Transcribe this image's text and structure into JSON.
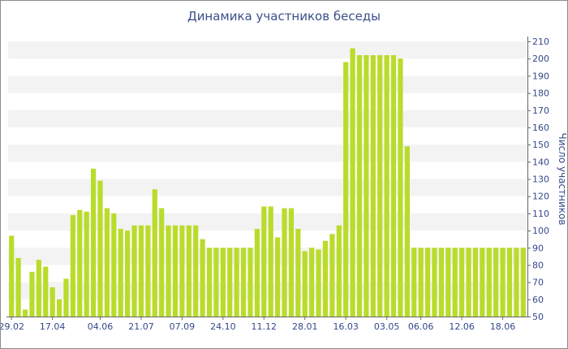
{
  "chart_data": {
    "type": "bar",
    "title": "Динамика участников беседы",
    "ylabel": "Число участников",
    "xlabel": "",
    "ylim": [
      50,
      210
    ],
    "yticks": [
      50,
      60,
      70,
      80,
      90,
      100,
      110,
      120,
      130,
      140,
      150,
      160,
      170,
      180,
      190,
      200,
      210
    ],
    "xtick_labels": [
      "29.02",
      "17.04",
      "04.06",
      "21.07",
      "07.09",
      "24.10",
      "11.12",
      "28.01",
      "16.03",
      "03.05",
      "06.06",
      "12.06",
      "18.06"
    ],
    "xtick_bar_index": [
      0,
      6,
      13,
      19,
      25,
      31,
      37,
      43,
      49,
      55,
      60,
      66,
      72
    ],
    "grid": "horizontal bands",
    "bar_color": "#b9dc2b",
    "values": [
      97,
      84,
      54,
      76,
      83,
      79,
      67,
      60,
      72,
      109,
      112,
      111,
      136,
      129,
      113,
      110,
      101,
      100,
      103,
      103,
      103,
      124,
      113,
      103,
      103,
      103,
      103,
      103,
      95,
      90,
      90,
      90,
      90,
      90,
      90,
      90,
      101,
      114,
      114,
      96,
      113,
      113,
      101,
      88,
      90,
      89,
      94,
      98,
      103,
      198,
      206,
      202,
      202,
      202,
      202,
      202,
      202,
      200,
      149,
      90,
      90,
      90,
      90,
      90,
      90,
      90,
      90,
      90,
      90,
      90,
      90,
      90,
      90,
      90,
      90,
      90
    ]
  }
}
